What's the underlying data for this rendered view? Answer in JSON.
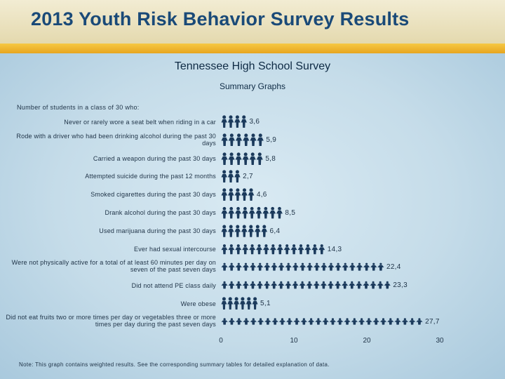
{
  "header": {
    "title": "2013 Youth Risk Behavior Survey Results"
  },
  "survey_title": "Tennessee High School Survey",
  "survey_subtitle": "Summary Graphs",
  "intro": "Number of students in a class of 30 who:",
  "note": "Note: This graph contains weighted results. See the corresponding summary tables for detailed explanation of data.",
  "colors": {
    "banner": "#f2ecd3",
    "title_text": "#1a4a78",
    "gold_bar": "#e9aa24",
    "figure_icon": "#1b3a5c"
  },
  "chart_data": {
    "type": "bar",
    "orientation": "horizontal",
    "marks": "person-icons",
    "categories": [
      "Never or rarely wore a seat belt when riding in a car",
      "Rode with a driver who had been drinking alcohol during the past 30 days",
      "Carried a weapon during the past 30 days",
      "Attempted suicide during the past 12 months",
      "Smoked cigarettes during the past 30 days",
      "Drank alcohol during the past 30 days",
      "Used marijuana during the past 30 days",
      "Ever had sexual intercourse",
      "Were not physically active for a total of at least 60 minutes per day on seven of the past seven days",
      "Did not attend PE class daily",
      "Were obese",
      "Did not eat fruits two or more times per day or vegetables three or more times per day during the past seven days"
    ],
    "values": [
      3.6,
      5.9,
      5.8,
      2.7,
      4.6,
      8.5,
      6.4,
      14.3,
      22.4,
      23.3,
      5.1,
      27.7
    ],
    "value_labels": [
      "3,6",
      "5,9",
      "5,8",
      "2,7",
      "4,6",
      "8,5",
      "6,4",
      "14,3",
      "22,4",
      "23,3",
      "5,1",
      "27,7"
    ],
    "xlim": [
      0,
      30
    ],
    "xticks": [
      0,
      10,
      20,
      30
    ],
    "xtick_labels": [
      "0",
      "10",
      "20",
      "30"
    ],
    "grid": false
  }
}
